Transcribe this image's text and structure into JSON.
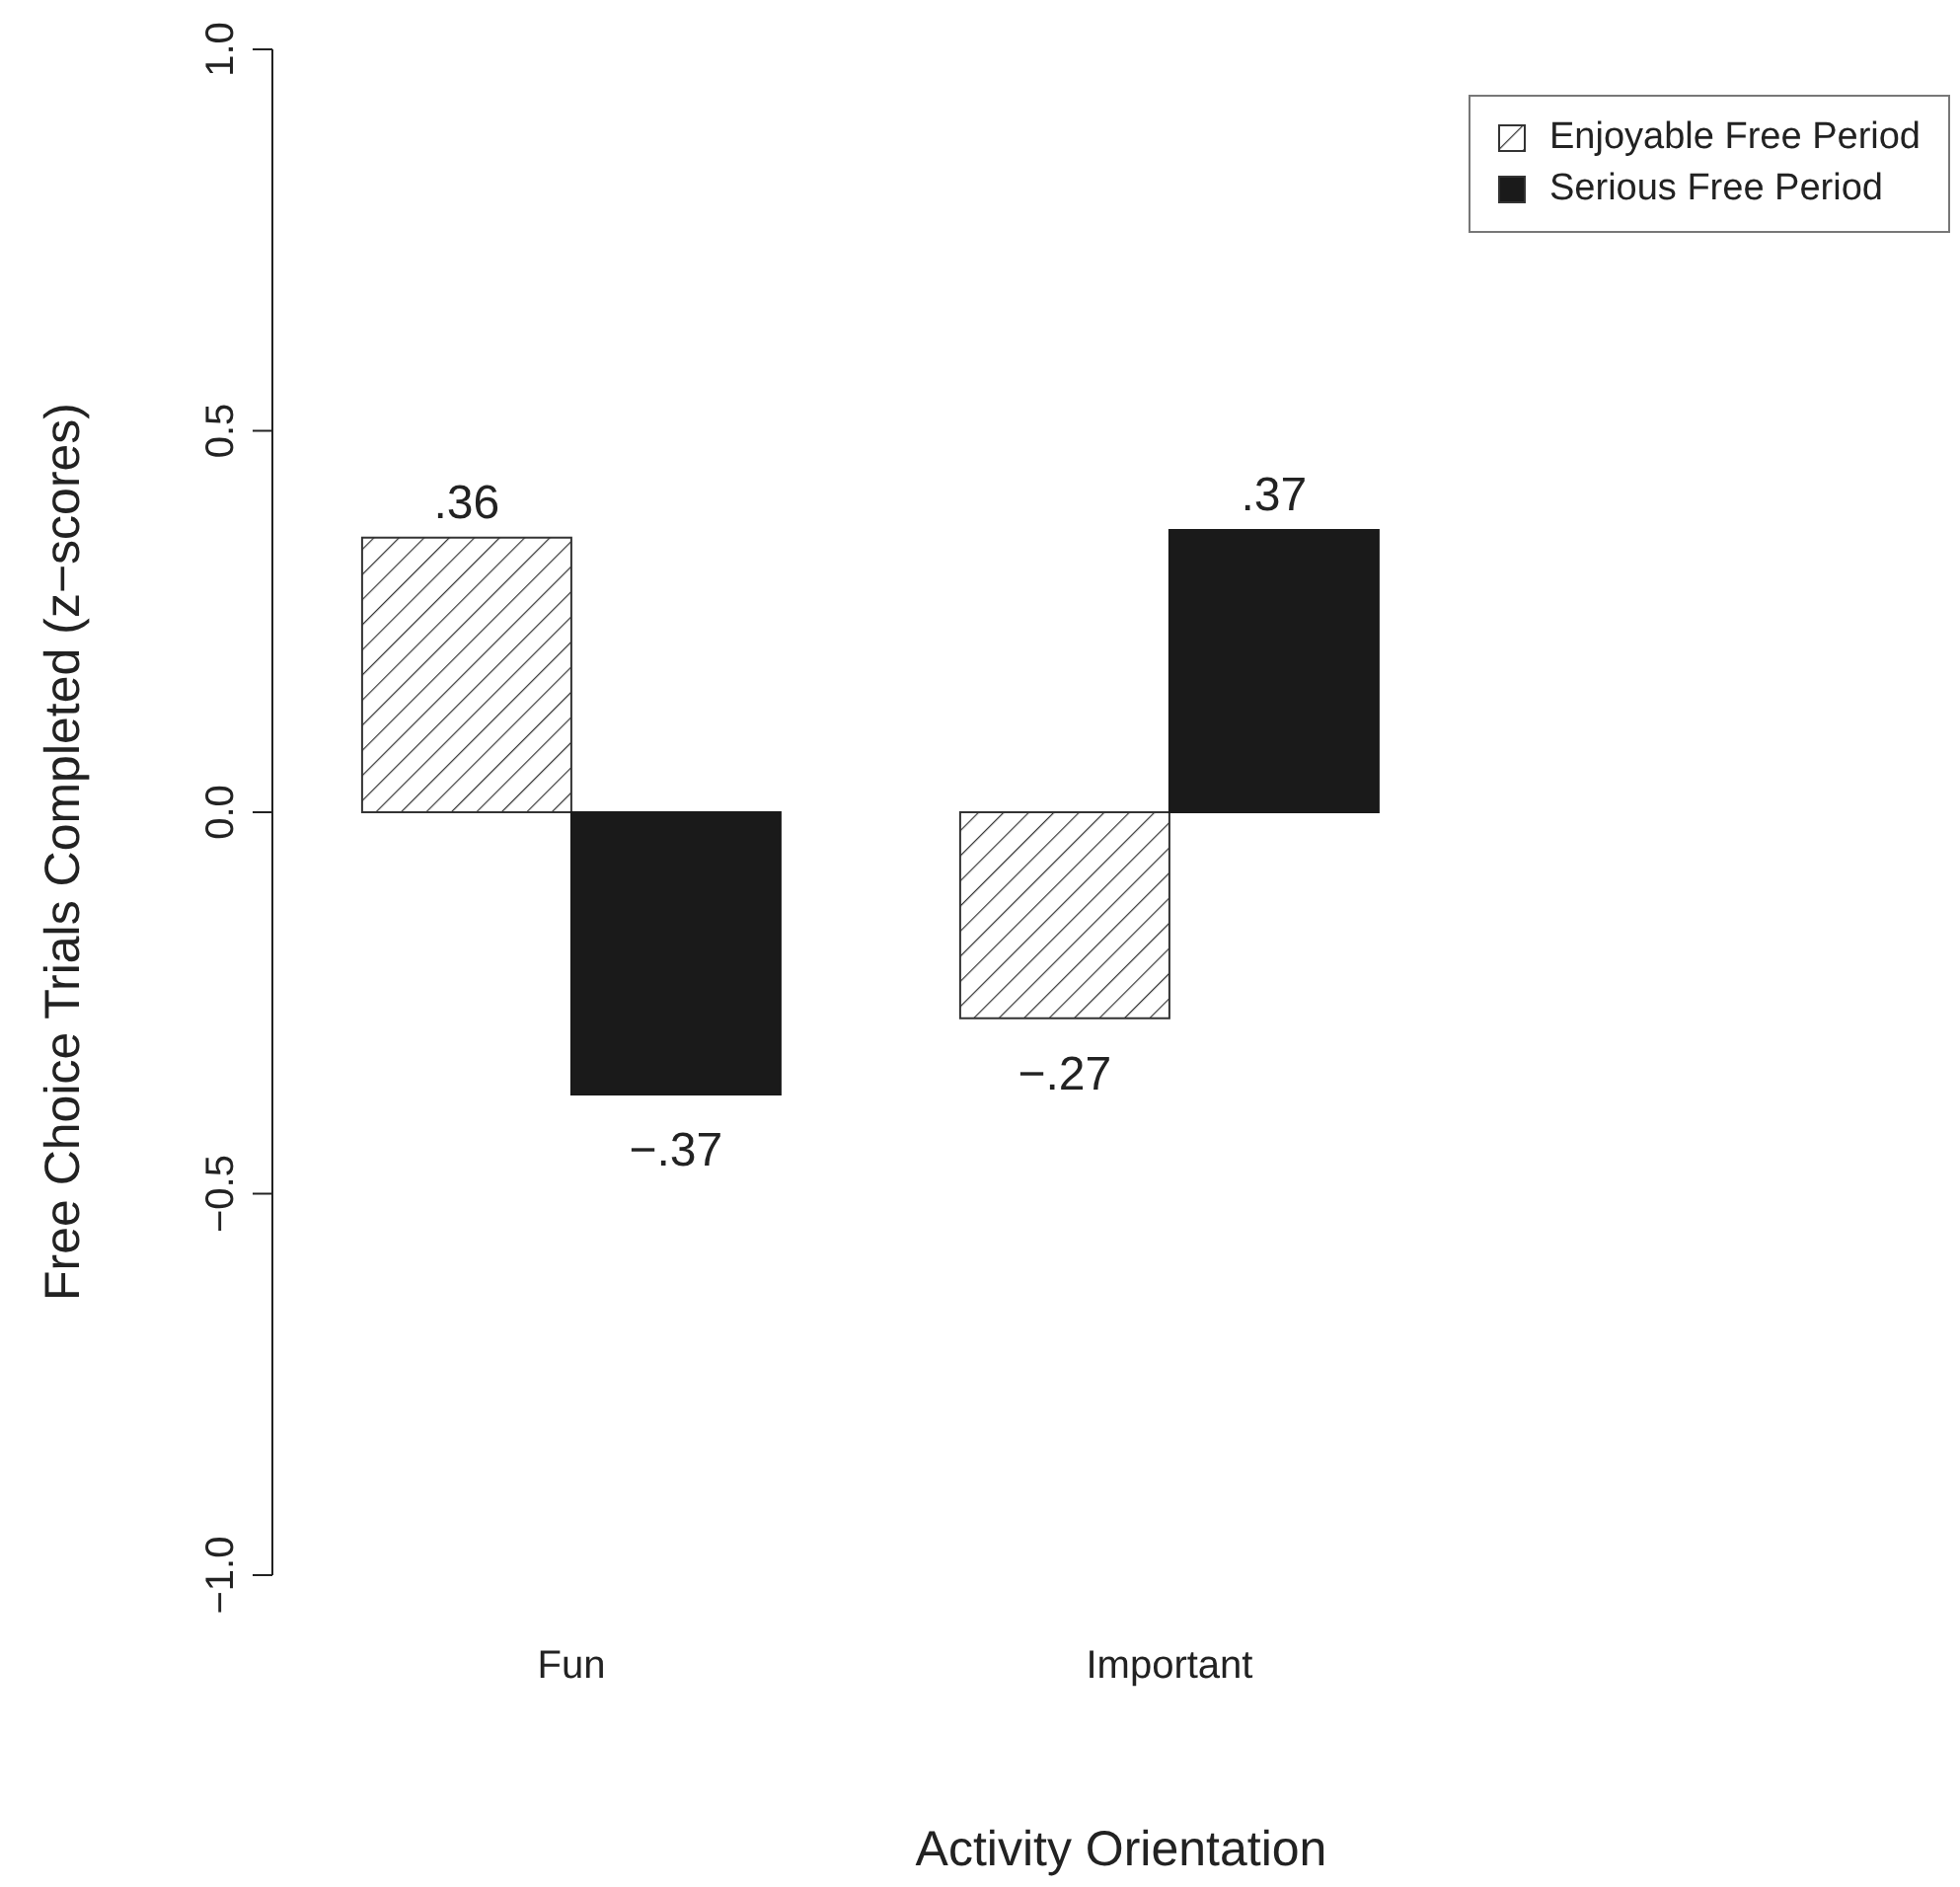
{
  "chart_data": {
    "type": "bar",
    "xlabel": "Activity Orientation",
    "ylabel": "Free Choice Trials Completed (z−scores)",
    "categories": [
      "Fun",
      "Important"
    ],
    "series": [
      {
        "name": "Enjoyable Free Period",
        "color": "#333333",
        "values": [
          0.36,
          -0.27
        ],
        "value_labels": [
          ".36",
          "−.27"
        ]
      },
      {
        "name": "Serious Free Period",
        "color": "#1a1a1a",
        "values": [
          -0.37,
          0.37
        ],
        "value_labels": [
          "−.37",
          ".37"
        ]
      }
    ],
    "ylim": [
      -1,
      1
    ],
    "yticks": [
      {
        "value": -1,
        "label": "−1.0"
      },
      {
        "value": -0.5,
        "label": "−0.5"
      },
      {
        "value": 0,
        "label": "0.0"
      },
      {
        "value": 0.5,
        "label": "0.5"
      },
      {
        "value": 1,
        "label": "1.0"
      }
    ],
    "grid": false,
    "legend": "top right"
  }
}
